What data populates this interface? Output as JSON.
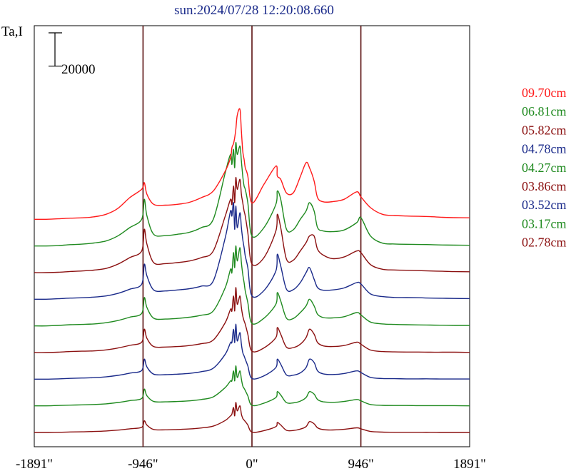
{
  "chart_data": {
    "type": "line",
    "title": "sun:2024/07/28 12:20:08.660",
    "ylabel": "Ta,I",
    "scale_bar_label": "20000",
    "x_ticks": [
      "-1891\"",
      "-946\"",
      "0\"",
      "946\"",
      "1891\""
    ],
    "x_tick_values": [
      -1891,
      -946,
      0,
      946,
      1891
    ],
    "xlim": [
      -1891,
      1891
    ],
    "ylim": [
      0,
      240000
    ],
    "scale_bar_value": 20000,
    "offset_step": 16000,
    "vertical_lines": [
      -946,
      0,
      946
    ],
    "vertical_line_color": "#5a1010",
    "grid": false,
    "legend_position": "right",
    "x": [
      -1891,
      -1788,
      -1684,
      -1580,
      -1476,
      -1372,
      -1268,
      -1166,
      -1062,
      -958,
      -935,
      -912,
      -854,
      -752,
      -648,
      -544,
      -440,
      -336,
      -232,
      -186,
      -174,
      -160,
      -150,
      -140,
      -128,
      -104,
      -92,
      -80,
      -68,
      -58,
      -36,
      0,
      104,
      208,
      220,
      250,
      300,
      360,
      420,
      470,
      500,
      540,
      570,
      620,
      700,
      800,
      910,
      946,
      1030,
      1134,
      1238,
      1342,
      1446,
      1550,
      1654,
      1758,
      1891
    ],
    "series": [
      {
        "name": "09.70cm",
        "color": "#ff1a1a",
        "baseline": 128000,
        "values": [
          0,
          0,
          300,
          700,
          900,
          1500,
          3000,
          6500,
          13000,
          18000,
          22000,
          15000,
          9000,
          8500,
          9000,
          10200,
          13000,
          17000,
          29000,
          37000,
          43000,
          45500,
          49000,
          54000,
          62500,
          66000,
          53000,
          41000,
          36000,
          31000,
          26000,
          9800,
          21000,
          32000,
          26000,
          24000,
          15800,
          16000,
          25600,
          34000,
          31000,
          23000,
          13000,
          10500,
          10600,
          12000,
          16500,
          13500,
          7000,
          3000,
          2300,
          2000,
          1800,
          1600,
          1200,
          1000,
          900
        ]
      },
      {
        "name": "06.81cm",
        "color": "#1f8a1f",
        "baseline": 112000,
        "values": [
          0,
          0,
          200,
          800,
          1100,
          1800,
          3000,
          6000,
          11000,
          16000,
          28000,
          18000,
          7000,
          6200,
          7000,
          8200,
          11000,
          16000,
          44000,
          55000,
          49000,
          58000,
          47000,
          62000,
          55000,
          60000,
          51000,
          42000,
          36000,
          34000,
          26000,
          6000,
          11000,
          25000,
          33000,
          28000,
          10000,
          9800,
          16000,
          21000,
          26000,
          21000,
          11000,
          9000,
          8600,
          9600,
          14000,
          17000,
          6000,
          1700,
          1200,
          1000,
          900,
          800,
          600,
          500,
          400
        ]
      },
      {
        "name": "05.82cm",
        "color": "#8b1010",
        "baseline": 96000,
        "values": [
          0,
          0,
          200,
          700,
          1000,
          1500,
          2500,
          5000,
          9000,
          13000,
          26000,
          17000,
          6000,
          5400,
          6000,
          7000,
          9000,
          13000,
          34000,
          44000,
          41000,
          52000,
          42000,
          57000,
          50000,
          56000,
          47000,
          42000,
          37000,
          34000,
          24000,
          5200,
          9000,
          25000,
          35000,
          27000,
          8000,
          7500,
          13000,
          18000,
          22000,
          22000,
          14000,
          10500,
          8400,
          9400,
          13000,
          12000,
          4800,
          2000,
          1600,
          1400,
          1200,
          1000,
          800,
          600,
          500
        ]
      },
      {
        "name": "04.78cm",
        "color": "#1a2a8a",
        "baseline": 80000,
        "values": [
          0,
          0,
          300,
          700,
          900,
          1300,
          2000,
          3500,
          6000,
          9000,
          21000,
          14000,
          5600,
          5000,
          5600,
          6300,
          7900,
          11000,
          37000,
          53000,
          50000,
          58000,
          42000,
          56000,
          43000,
          52000,
          43000,
          36000,
          31000,
          26000,
          19000,
          2000,
          5200,
          17000,
          27000,
          20000,
          6000,
          5800,
          10000,
          16000,
          19000,
          12000,
          7000,
          5400,
          5600,
          6800,
          10000,
          9200,
          3200,
          1600,
          1100,
          1000,
          900,
          700,
          600,
          500,
          400
        ]
      },
      {
        "name": "04.27cm",
        "color": "#1f8a1f",
        "baseline": 64000,
        "values": [
          0,
          0,
          300,
          700,
          900,
          1200,
          1900,
          3200,
          5200,
          7500,
          17000,
          11000,
          4600,
          4100,
          4500,
          5200,
          6400,
          9000,
          23000,
          34000,
          32000,
          44000,
          35000,
          48000,
          39000,
          47000,
          38000,
          31000,
          26000,
          21000,
          14000,
          1500,
          4600,
          13000,
          20000,
          15000,
          4600,
          4500,
          8000,
          12000,
          16000,
          12000,
          7000,
          5000,
          4800,
          5500,
          8000,
          6600,
          2300,
          1200,
          900,
          700,
          600,
          500,
          400,
          300,
          300
        ]
      },
      {
        "name": "03.86cm",
        "color": "#8b1010",
        "baseline": 48000,
        "values": [
          0,
          0,
          200,
          600,
          800,
          1000,
          1600,
          2700,
          4300,
          6200,
          14000,
          8500,
          3600,
          3300,
          3600,
          4200,
          5300,
          7500,
          18000,
          26000,
          25000,
          34000,
          25000,
          39000,
          29000,
          34000,
          27000,
          22000,
          19000,
          17000,
          11000,
          800,
          2800,
          9000,
          15000,
          11000,
          3200,
          3000,
          5000,
          9000,
          14000,
          11000,
          6000,
          4000,
          3600,
          4200,
          6200,
          5000,
          1500,
          600,
          400,
          300,
          300,
          200,
          200,
          200,
          100
        ]
      },
      {
        "name": "03.52cm",
        "color": "#1a2a8a",
        "baseline": 32000,
        "values": [
          0,
          0,
          200,
          500,
          700,
          900,
          1400,
          2300,
          3600,
          5200,
          12000,
          7300,
          3000,
          2700,
          3000,
          3500,
          4500,
          6600,
          15000,
          22000,
          22000,
          30000,
          22000,
          33000,
          23000,
          28000,
          21000,
          16000,
          14000,
          12000,
          8000,
          400,
          2000,
          7000,
          12000,
          9000,
          2500,
          2400,
          3800,
          7000,
          12000,
          10000,
          5000,
          3200,
          2800,
          3400,
          5000,
          4000,
          1100,
          400,
          300,
          200,
          200,
          200,
          100,
          100,
          100
        ]
      },
      {
        "name": "03.17cm",
        "color": "#1f8a1f",
        "baseline": 16000,
        "values": [
          0,
          0,
          200,
          400,
          600,
          800,
          1200,
          2000,
          3100,
          4400,
          10000,
          6000,
          2600,
          2400,
          2600,
          3000,
          3800,
          5400,
          11000,
          15000,
          15000,
          21000,
          15000,
          24000,
          17000,
          21000,
          16000,
          12000,
          10500,
          9200,
          6000,
          300,
          1600,
          5000,
          8500,
          6500,
          1900,
          1800,
          2800,
          5000,
          8500,
          7000,
          3800,
          2400,
          2100,
          2600,
          3800,
          3000,
          800,
          300,
          200,
          200,
          100,
          100,
          100,
          100,
          0
        ]
      },
      {
        "name": "02.78cm",
        "color": "#8b1010",
        "baseline": 0,
        "values": [
          0,
          0,
          100,
          300,
          400,
          600,
          900,
          1400,
          2200,
          3100,
          7000,
          4400,
          1800,
          1600,
          1800,
          2100,
          2700,
          3800,
          7200,
          10000,
          11000,
          15000,
          10000,
          18000,
          13000,
          16000,
          11000,
          8500,
          7400,
          6600,
          4500,
          200,
          1100,
          3500,
          6000,
          4500,
          1300,
          1200,
          2000,
          3500,
          6500,
          5200,
          2800,
          1700,
          1500,
          1900,
          2800,
          2200,
          600,
          200,
          100,
          100,
          100,
          100,
          0,
          0,
          0
        ]
      }
    ]
  }
}
